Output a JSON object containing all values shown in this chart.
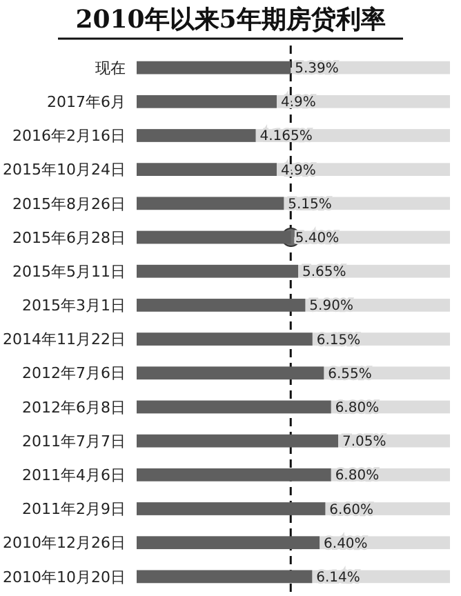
{
  "chart_data": {
    "type": "bar",
    "orientation": "horizontal",
    "title": "2010年以来5年期房贷利率",
    "categories": [
      "现在",
      "2017年6月",
      "2016年2月16日",
      "2015年10月24日",
      "2015年8月26日",
      "2015年6月28日",
      "2015年5月11日",
      "2015年3月1日",
      "2014年11月22日",
      "2012年7月6日",
      "2012年6月8日",
      "2011年7月7日",
      "2011年4月6日",
      "2011年2月9日",
      "2010年12月26日",
      "2010年10月20日"
    ],
    "series": [
      {
        "color": "#5f5f5f",
        "values": [
          5.39,
          4.9,
          4.165,
          4.9,
          5.15,
          5.4,
          5.65,
          5.9,
          6.15,
          6.55,
          6.8,
          7.05,
          6.8,
          6.6,
          6.4,
          6.14
        ],
        "value_labels": [
          "5.39%",
          "4.9%",
          "4.165%",
          "4.9%",
          "5.15%",
          "5.40%",
          "5.65%",
          "5.90%",
          "6.15%",
          "6.55%",
          "6.80%",
          "7.05%",
          "6.80%",
          "6.60%",
          "6.40%",
          "6.14%"
        ]
      },
      {
        "type": "scatter",
        "color": "#6e6e6e",
        "marker": "circle",
        "values": [
          null,
          null,
          null,
          null,
          null,
          5.4,
          null,
          null,
          null,
          null,
          null,
          null,
          null,
          null,
          null,
          null
        ]
      }
    ],
    "tick_labels": "y",
    "ref_lines": [
      {
        "axis": "x",
        "value": 5.39,
        "line_style": "dashed",
        "color": "#111111"
      }
    ]
  }
}
